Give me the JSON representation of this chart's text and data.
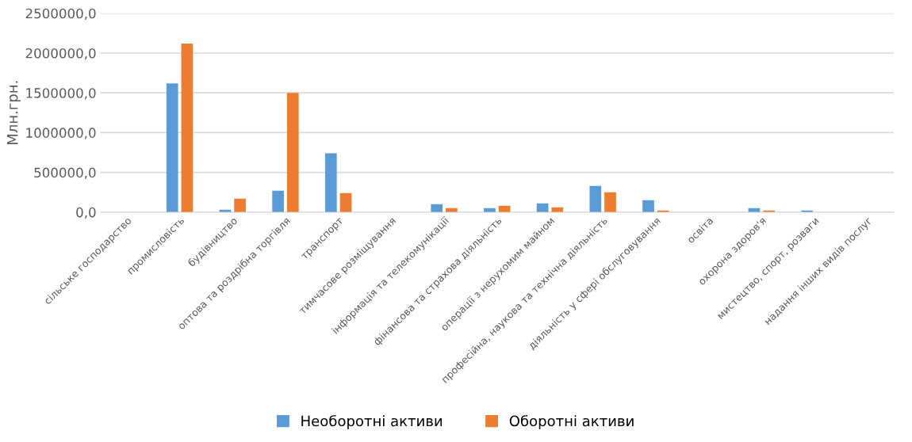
{
  "chart_data": {
    "type": "bar",
    "ylabel": "Млн.грн.",
    "categories": [
      "сільське господарство",
      "промисловість",
      "будівництво",
      "оптова та роздрібна торгівля",
      "транспорт",
      "тимчасове розміщування",
      "інформація та телекомунікації",
      "фінансова та страхова діяльність",
      "операції з нерухомим майном",
      "професійна, наукова та технічна діяльність",
      "діяльність у сфері обслуговування",
      "освіта",
      "охорона здоров'я",
      "мистецтво, спорт, розваги",
      "надання інших видів послуг"
    ],
    "series": [
      {
        "name": "Необоротні активи",
        "color": "#5b9bd5",
        "values": [
          0,
          1620000,
          30000,
          270000,
          740000,
          0,
          100000,
          50000,
          110000,
          330000,
          150000,
          0,
          50000,
          20000,
          0
        ]
      },
      {
        "name": "Оборотні активи",
        "color": "#ed7d31",
        "values": [
          0,
          2120000,
          170000,
          1500000,
          240000,
          0,
          50000,
          80000,
          60000,
          250000,
          20000,
          0,
          20000,
          null,
          0
        ]
      }
    ],
    "ylim": [
      0,
      2500000
    ],
    "yticks": [
      {
        "value": 0,
        "label": "0,0"
      },
      {
        "value": 500000,
        "label": "500000,0"
      },
      {
        "value": 1000000,
        "label": "1000000,0"
      },
      {
        "value": 1500000,
        "label": "1500000,0"
      },
      {
        "value": 2000000,
        "label": "2000000,0"
      },
      {
        "value": 2500000,
        "label": "2500000,0"
      }
    ],
    "grid": "y",
    "legend": "bottom"
  }
}
